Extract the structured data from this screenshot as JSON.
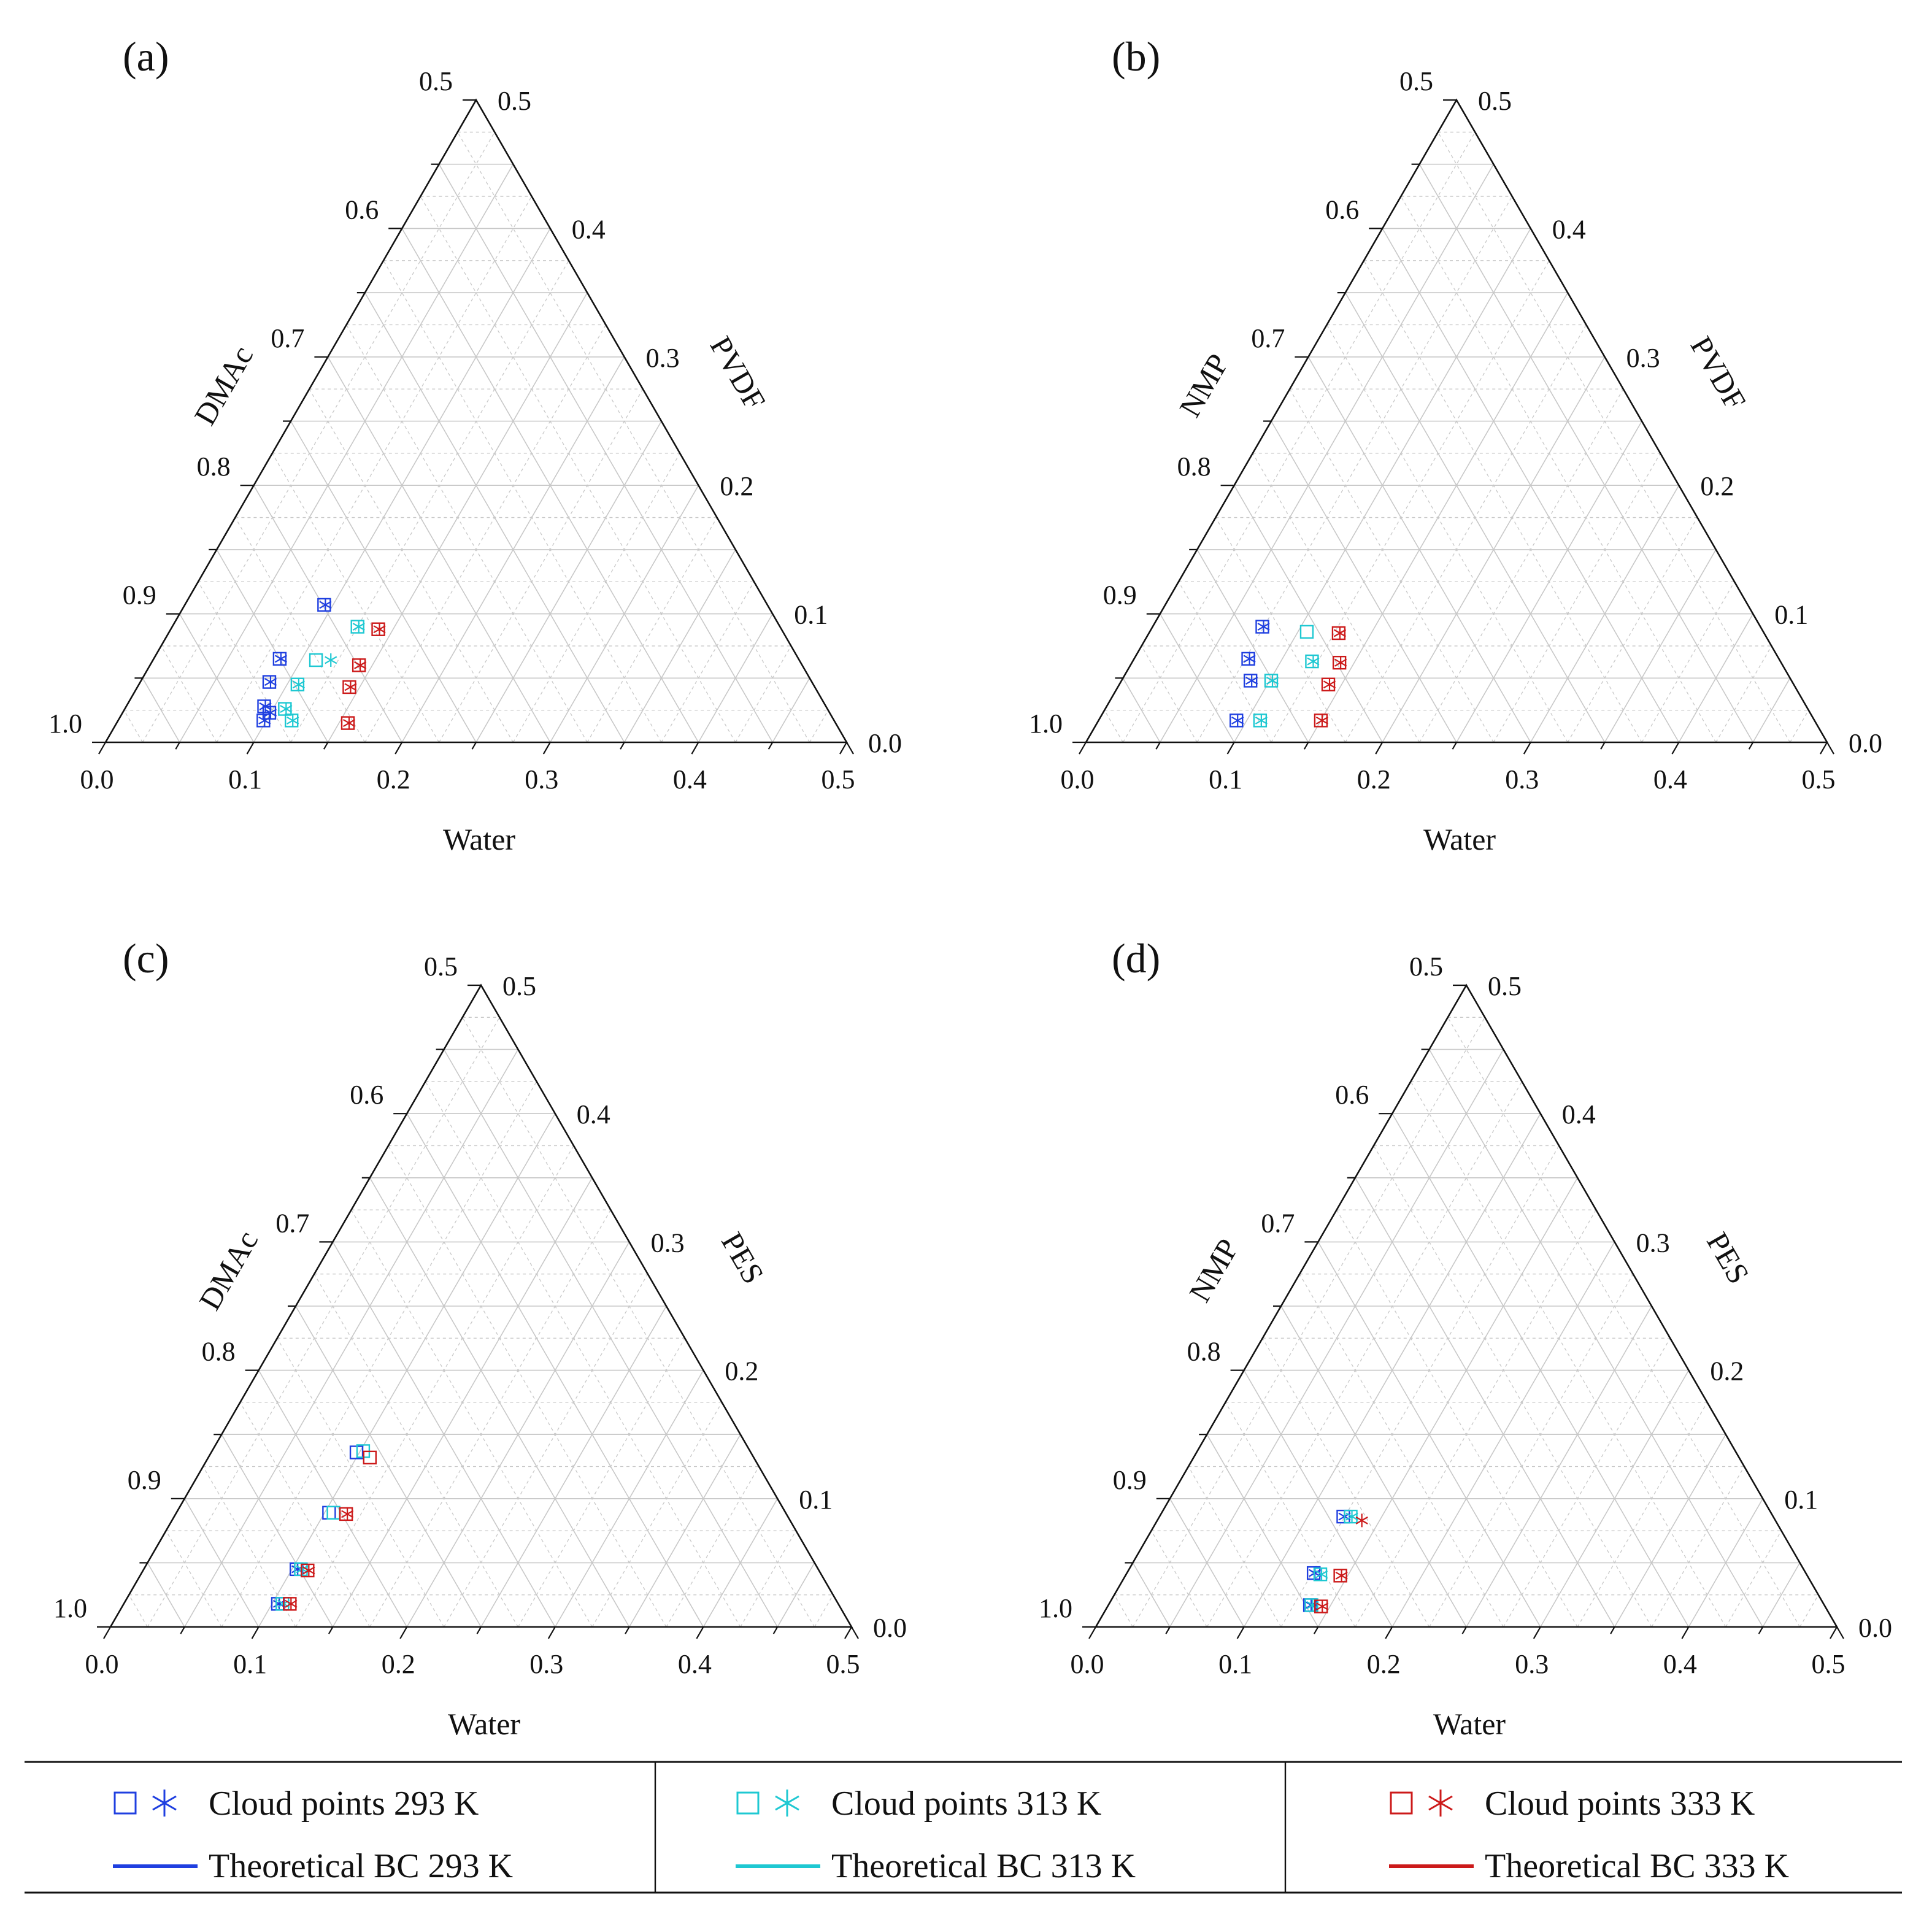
{
  "figure": {
    "type": "ternary",
    "colors": {
      "293 K": "#1f3fe0",
      "313 K": "#1ec8d2",
      "333 K": "#cc1a1a",
      "axis": "#111111",
      "grid": "#c8c8c8"
    }
  },
  "chart_data": [
    {
      "type": "scatter",
      "panel_label": "(a)",
      "bottom_axis": "Water",
      "left_axis": "DMAc",
      "right_axis": "PVDF",
      "range": [
        0.0,
        0.5
      ],
      "bottom_ticks": [
        "0.0",
        "0.1",
        "0.2",
        "0.3",
        "0.4",
        "0.5"
      ],
      "left_ticks": [
        "1.0",
        "0.9",
        "0.8",
        "0.7",
        "0.6",
        "0.5"
      ],
      "right_ticks": [
        "0.0",
        "0.1",
        "0.2",
        "0.3",
        "0.4",
        "0.5"
      ],
      "series": [
        {
          "name": "Cloud points 293 K",
          "key": "293 K",
          "points": [
            {
              "water": 0.094,
              "polymer": 0.107,
              "marker": "both"
            },
            {
              "water": 0.085,
              "polymer": 0.065,
              "marker": "both"
            },
            {
              "water": 0.087,
              "polymer": 0.047,
              "marker": "both"
            },
            {
              "water": 0.093,
              "polymer": 0.028,
              "marker": "both"
            },
            {
              "water": 0.098,
              "polymer": 0.017,
              "marker": "both"
            },
            {
              "water": 0.099,
              "polymer": 0.023,
              "marker": "both"
            }
          ]
        },
        {
          "name": "Cloud points 313 K",
          "key": "313 K",
          "points": [
            {
              "water": 0.125,
              "polymer": 0.09,
              "marker": "both"
            },
            {
              "water": 0.11,
              "polymer": 0.064,
              "marker": "square"
            },
            {
              "water": 0.12,
              "polymer": 0.064,
              "marker": "asterisk"
            },
            {
              "water": 0.107,
              "polymer": 0.045,
              "marker": "both"
            },
            {
              "water": 0.108,
              "polymer": 0.026,
              "marker": "both"
            },
            {
              "water": 0.117,
              "polymer": 0.017,
              "marker": "both"
            }
          ]
        },
        {
          "name": "Cloud points 333 K",
          "key": "333 K",
          "points": [
            {
              "water": 0.14,
              "polymer": 0.088,
              "marker": "both"
            },
            {
              "water": 0.141,
              "polymer": 0.06,
              "marker": "both"
            },
            {
              "water": 0.143,
              "polymer": 0.043,
              "marker": "both"
            },
            {
              "water": 0.156,
              "polymer": 0.015,
              "marker": "both"
            }
          ]
        }
      ]
    },
    {
      "type": "scatter",
      "panel_label": "(b)",
      "bottom_axis": "Water",
      "left_axis": "NMP",
      "right_axis": "PVDF",
      "range": [
        0.0,
        0.5
      ],
      "bottom_ticks": [
        "0.0",
        "0.1",
        "0.2",
        "0.3",
        "0.4",
        "0.5"
      ],
      "left_ticks": [
        "1.0",
        "0.9",
        "0.8",
        "0.7",
        "0.6",
        "0.5"
      ],
      "right_ticks": [
        "0.0",
        "0.1",
        "0.2",
        "0.3",
        "0.4",
        "0.5"
      ],
      "series": [
        {
          "name": "Cloud points 293 K",
          "key": "293 K",
          "points": [
            {
              "water": 0.074,
              "polymer": 0.09,
              "marker": "both"
            },
            {
              "water": 0.077,
              "polymer": 0.065,
              "marker": "both"
            },
            {
              "water": 0.087,
              "polymer": 0.048,
              "marker": "both"
            },
            {
              "water": 0.093,
              "polymer": 0.017,
              "marker": "both"
            }
          ]
        },
        {
          "name": "Cloud points 313 K",
          "key": "313 K",
          "points": [
            {
              "water": 0.106,
              "polymer": 0.086,
              "marker": "square"
            },
            {
              "water": 0.121,
              "polymer": 0.063,
              "marker": "both"
            },
            {
              "water": 0.101,
              "polymer": 0.048,
              "marker": "both"
            },
            {
              "water": 0.109,
              "polymer": 0.017,
              "marker": "both"
            }
          ]
        },
        {
          "name": "Cloud points 333 K",
          "key": "333 K",
          "points": [
            {
              "water": 0.128,
              "polymer": 0.085,
              "marker": "both"
            },
            {
              "water": 0.14,
              "polymer": 0.062,
              "marker": "both"
            },
            {
              "water": 0.141,
              "polymer": 0.045,
              "marker": "both"
            },
            {
              "water": 0.15,
              "polymer": 0.017,
              "marker": "both"
            }
          ]
        }
      ]
    },
    {
      "type": "scatter",
      "panel_label": "(c)",
      "bottom_axis": "Water",
      "left_axis": "DMAc",
      "right_axis": "PES",
      "range": [
        0.0,
        0.5
      ],
      "bottom_ticks": [
        "0.0",
        "0.1",
        "0.2",
        "0.3",
        "0.4",
        "0.5"
      ],
      "left_ticks": [
        "1.0",
        "0.9",
        "0.8",
        "0.7",
        "0.6",
        "0.5"
      ],
      "right_ticks": [
        "0.0",
        "0.1",
        "0.2",
        "0.3",
        "0.4",
        "0.5"
      ],
      "series": [
        {
          "name": "Cloud points 293 K",
          "key": "293 K",
          "points": [
            {
              "water": 0.098,
              "polymer": 0.136,
              "marker": "square"
            },
            {
              "water": 0.103,
              "polymer": 0.089,
              "marker": "square"
            },
            {
              "water": 0.103,
              "polymer": 0.045,
              "marker": "both"
            },
            {
              "water": 0.104,
              "polymer": 0.018,
              "marker": "both"
            }
          ]
        },
        {
          "name": "Cloud points 313 K",
          "key": "313 K",
          "points": [
            {
              "water": 0.102,
              "polymer": 0.137,
              "marker": "square"
            },
            {
              "water": 0.106,
              "polymer": 0.089,
              "marker": "square"
            },
            {
              "water": 0.106,
              "polymer": 0.045,
              "marker": "both"
            },
            {
              "water": 0.107,
              "polymer": 0.018,
              "marker": "both"
            }
          ]
        },
        {
          "name": "Cloud points 333 K",
          "key": "333 K",
          "points": [
            {
              "water": 0.109,
              "polymer": 0.132,
              "marker": "square"
            },
            {
              "water": 0.115,
              "polymer": 0.088,
              "marker": "both"
            },
            {
              "water": 0.111,
              "polymer": 0.044,
              "marker": "both"
            },
            {
              "water": 0.112,
              "polymer": 0.018,
              "marker": "both"
            }
          ]
        }
      ]
    },
    {
      "type": "scatter",
      "panel_label": "(d)",
      "bottom_axis": "Water",
      "left_axis": "NMP",
      "right_axis": "PES",
      "range": [
        0.0,
        0.5
      ],
      "bottom_ticks": [
        "0.0",
        "0.1",
        "0.2",
        "0.3",
        "0.4",
        "0.5"
      ],
      "left_ticks": [
        "1.0",
        "0.9",
        "0.8",
        "0.7",
        "0.6",
        "0.5"
      ],
      "right_ticks": [
        "0.0",
        "0.1",
        "0.2",
        "0.3",
        "0.4",
        "0.5"
      ],
      "series": [
        {
          "name": "Cloud points 293 K",
          "key": "293 K",
          "points": [
            {
              "water": 0.124,
              "polymer": 0.086,
              "marker": "both"
            },
            {
              "water": 0.126,
              "polymer": 0.042,
              "marker": "both"
            },
            {
              "water": 0.136,
              "polymer": 0.017,
              "marker": "both"
            }
          ]
        },
        {
          "name": "Cloud points 313 K",
          "key": "313 K",
          "points": [
            {
              "water": 0.129,
              "polymer": 0.086,
              "marker": "both"
            },
            {
              "water": 0.131,
              "polymer": 0.041,
              "marker": "both"
            },
            {
              "water": 0.137,
              "polymer": 0.017,
              "marker": "both"
            }
          ]
        },
        {
          "name": "Cloud points 333 K",
          "key": "333 K",
          "points": [
            {
              "water": 0.138,
              "polymer": 0.083,
              "marker": "asterisk"
            },
            {
              "water": 0.145,
              "polymer": 0.04,
              "marker": "both"
            },
            {
              "water": 0.144,
              "polymer": 0.016,
              "marker": "both"
            }
          ]
        }
      ]
    }
  ],
  "legend": {
    "items": [
      {
        "key": "293 K",
        "cloud_label": "Cloud points 293 K",
        "bc_label": "Theoretical BC 293 K"
      },
      {
        "key": "313 K",
        "cloud_label": "Cloud points 313 K",
        "bc_label": "Theoretical BC 313 K"
      },
      {
        "key": "333 K",
        "cloud_label": "Cloud points 333 K",
        "bc_label": "Theoretical BC 333 K"
      }
    ]
  }
}
